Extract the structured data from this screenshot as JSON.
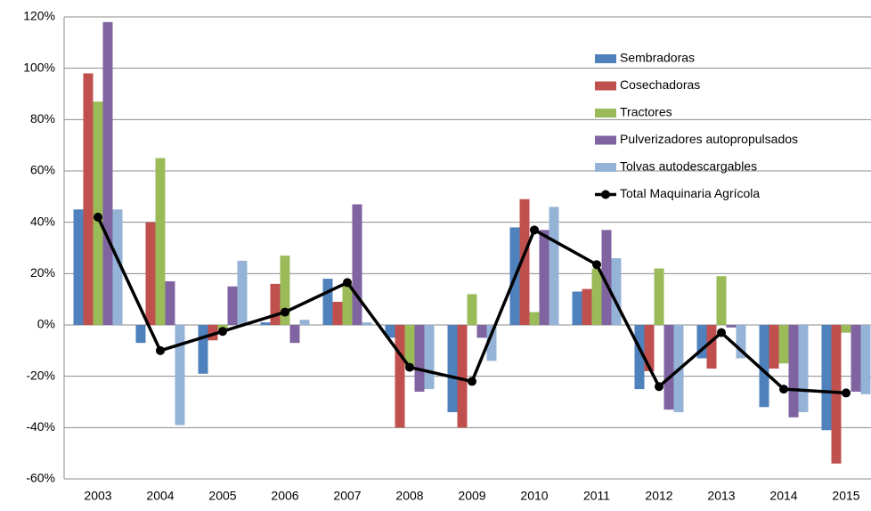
{
  "chart_data": {
    "type": "bar",
    "categories": [
      "2003",
      "2004",
      "2005",
      "2006",
      "2007",
      "2008",
      "2009",
      "2010",
      "2011",
      "2012",
      "2013",
      "2014",
      "2015"
    ],
    "series": [
      {
        "name": "Sembradoras",
        "color": "#4f81bd",
        "values": [
          45,
          -7,
          -19,
          1,
          18,
          -5,
          -34,
          38,
          13,
          -25,
          -13,
          -32,
          -41
        ]
      },
      {
        "name": "Cosechadoras",
        "color": "#c0504d",
        "values": [
          98,
          40,
          -6,
          16,
          9,
          -40,
          -40,
          49,
          14,
          -18,
          -17,
          -17,
          -54
        ]
      },
      {
        "name": "Tractores",
        "color": "#9bbb59",
        "values": [
          87,
          65,
          -2,
          27,
          16,
          -16,
          12,
          5,
          22,
          22,
          19,
          -15,
          -3
        ]
      },
      {
        "name": "Pulverizadores autopropulsados",
        "color": "#8064a2",
        "values": [
          118,
          17,
          15,
          -7,
          47,
          -26,
          -5,
          37,
          37,
          -33,
          -1,
          -36,
          -26
        ]
      },
      {
        "name": "Tolvas autodescargables",
        "color": "#95b3d7",
        "values": [
          45,
          -39,
          25,
          2,
          1,
          -25,
          -14,
          46,
          26,
          -34,
          -13,
          -34,
          -27
        ]
      },
      {
        "name": "Total Maquinaria Agrícola",
        "color": "#000000",
        "type": "line",
        "values": [
          42,
          -10,
          -2.5,
          5,
          16.5,
          -16.5,
          -22,
          37,
          23.5,
          -24,
          -3,
          -25,
          -26.5
        ]
      }
    ],
    "ylim": [
      -60,
      120
    ],
    "yticks": [
      {
        "value": -60,
        "label": "-60%"
      },
      {
        "value": -40,
        "label": "-40%"
      },
      {
        "value": -20,
        "label": "-20%"
      },
      {
        "value": 0,
        "label": "0%"
      },
      {
        "value": 20,
        "label": "20%"
      },
      {
        "value": 40,
        "label": "40%"
      },
      {
        "value": 60,
        "label": "60%"
      },
      {
        "value": 80,
        "label": "80%"
      },
      {
        "value": 100,
        "label": "100%"
      },
      {
        "value": 120,
        "label": "120%"
      }
    ],
    "grid": true,
    "legend": "top-right"
  }
}
